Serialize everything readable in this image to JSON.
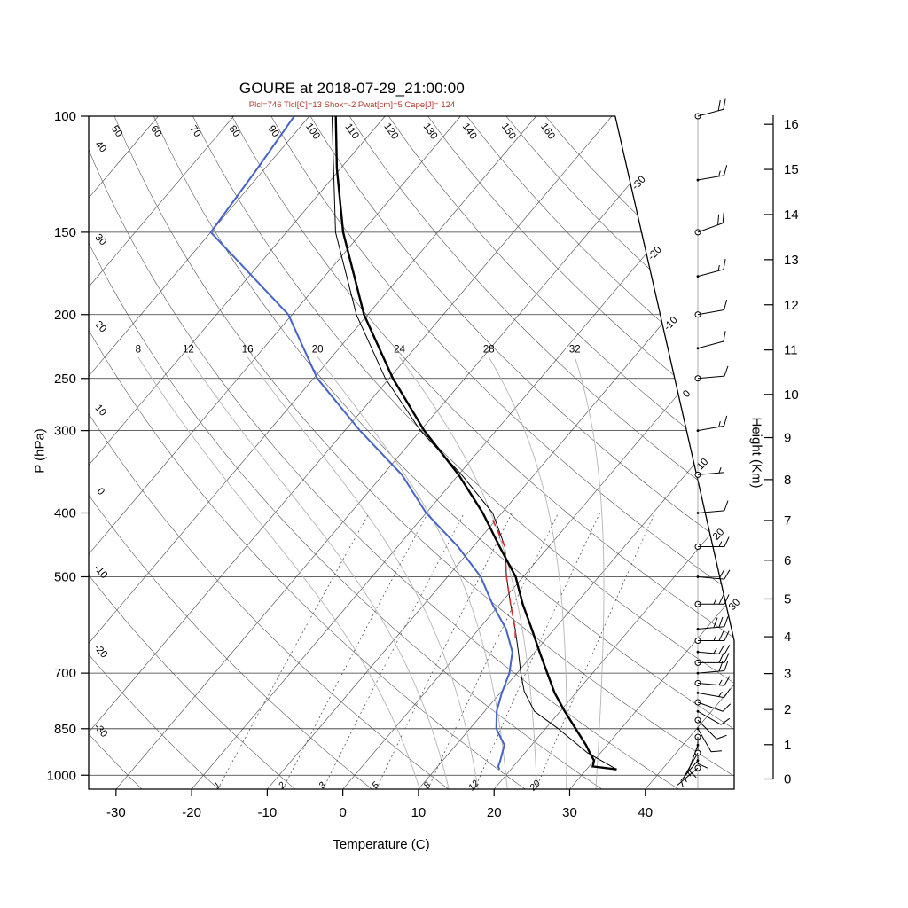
{
  "title": "GOURE at 2018-07-29_21:00:00",
  "subtitle": "Plcl=746 Tlcl[C]=13 Shox=-2 Pwat[cm]=5 Cape[J]= 124",
  "axes": {
    "pressure_label": "P (hPa)",
    "pressure_ticks": [
      100,
      150,
      200,
      250,
      300,
      400,
      500,
      700,
      850,
      1000
    ],
    "temp_label": "Temperature (C)",
    "temp_ticks": [
      -30,
      -20,
      -10,
      0,
      10,
      20,
      30,
      40
    ],
    "height_label": "Height (Km)",
    "height_ticks": [
      0,
      1,
      2,
      3,
      4,
      5,
      6,
      7,
      8,
      9,
      10,
      11,
      12,
      13,
      14,
      15,
      16
    ]
  },
  "background": {
    "isotherm_labels": [
      -30,
      -20,
      -10,
      0,
      10,
      20,
      30
    ],
    "dry_adiabat_left_labels": [
      40,
      30,
      20,
      10,
      0,
      -10,
      -20,
      -30
    ],
    "dry_adiabat_top_labels": [
      50,
      60,
      70,
      80,
      90,
      100,
      110,
      120,
      130,
      140,
      150,
      160
    ],
    "moist_adiabat_labels": [
      8,
      12,
      16,
      20,
      24,
      28,
      32
    ],
    "mixing_ratio_labels": [
      1,
      2,
      3,
      5,
      8,
      12,
      20
    ]
  },
  "chart_data": {
    "type": "line",
    "title": "GOURE at 2018-07-29_21:00:00",
    "station": "GOURE",
    "datetime": "2018-07-29_21:00:00",
    "xlabel": "Temperature (C)",
    "ylabel": "P (hPa)",
    "ylabel_right": "Height (Km)",
    "x_range_c": [
      -30,
      40
    ],
    "pressure_range_hpa": [
      100,
      1050
    ],
    "indices": {
      "plcl_hpa": 746,
      "tlcl_c": 13,
      "showalter": -2,
      "pwat_cm": 5,
      "cape_j": 124
    },
    "sounding": {
      "pressure_hpa": [
        980,
        970,
        950,
        925,
        900,
        850,
        800,
        750,
        700,
        650,
        600,
        550,
        500,
        450,
        400,
        350,
        300,
        250,
        200,
        150,
        120,
        100
      ],
      "temperature_c": [
        34.0,
        30.5,
        30.0,
        28.6,
        27.2,
        24.0,
        20.6,
        17.2,
        14.0,
        10.6,
        7.0,
        3.0,
        -1.0,
        -6.5,
        -12.5,
        -20.0,
        -29.5,
        -39.5,
        -50.5,
        -62.5,
        -70.5,
        -76.5
      ],
      "dewpoint_c": [
        18.5,
        18.0,
        17.6,
        17.0,
        16.4,
        13.5,
        11.6,
        10.2,
        9.0,
        7.0,
        3.6,
        -1.0,
        -5.6,
        -12.0,
        -20.0,
        -27.5,
        -38.0,
        -49.5,
        -60.5,
        -80.0,
        -81.0,
        -82.0
      ]
    },
    "parcel": {
      "pressure_hpa": [
        980,
        925,
        850,
        800,
        746,
        700,
        650,
        600,
        550,
        500,
        450,
        400,
        350,
        300,
        250,
        200,
        150,
        100
      ],
      "temperature_c": [
        34.0,
        28.3,
        21.7,
        16.6,
        13.0,
        10.5,
        7.8,
        4.8,
        1.4,
        -2.2,
        -5.8,
        -11.2,
        -19.6,
        -30.0,
        -40.5,
        -51.5,
        -63.5,
        -77.0
      ]
    },
    "cape_segment": {
      "pressure_hpa": [
        620,
        600,
        550,
        500,
        450,
        410
      ],
      "temperature_c": [
        5.9,
        4.8,
        1.4,
        -2.2,
        -5.8,
        -10.4
      ]
    },
    "wind_barbs_p_kt_dir": [
      [
        100,
        20,
        75
      ],
      [
        125,
        15,
        80
      ],
      [
        150,
        20,
        70
      ],
      [
        175,
        15,
        75
      ],
      [
        200,
        10,
        80
      ],
      [
        225,
        10,
        75
      ],
      [
        250,
        10,
        85
      ],
      [
        300,
        15,
        80
      ],
      [
        350,
        5,
        85
      ],
      [
        400,
        10,
        85
      ],
      [
        450,
        15,
        90
      ],
      [
        500,
        20,
        95
      ],
      [
        550,
        25,
        90
      ],
      [
        600,
        30,
        85
      ],
      [
        625,
        25,
        90
      ],
      [
        650,
        25,
        95
      ],
      [
        675,
        20,
        90
      ],
      [
        700,
        20,
        85
      ],
      [
        725,
        15,
        95
      ],
      [
        750,
        15,
        100
      ],
      [
        775,
        10,
        110
      ],
      [
        800,
        10,
        120
      ],
      [
        825,
        10,
        135
      ],
      [
        850,
        10,
        150
      ],
      [
        875,
        8,
        180
      ],
      [
        900,
        8,
        200
      ],
      [
        925,
        5,
        210
      ],
      [
        950,
        5,
        220
      ],
      [
        975,
        5,
        230
      ]
    ]
  },
  "colors": {
    "temperature": "#000000",
    "dewpoint": "#4663c8",
    "parcel": "#000000",
    "cape": "#d63031",
    "subtitle": "#b03a2e",
    "grid": "#333333",
    "dry_adiabat": "#4a4a4a",
    "moist_adiabat": "#b5b5b5",
    "mixing_ratio": "#555555",
    "outline": "#000000"
  }
}
